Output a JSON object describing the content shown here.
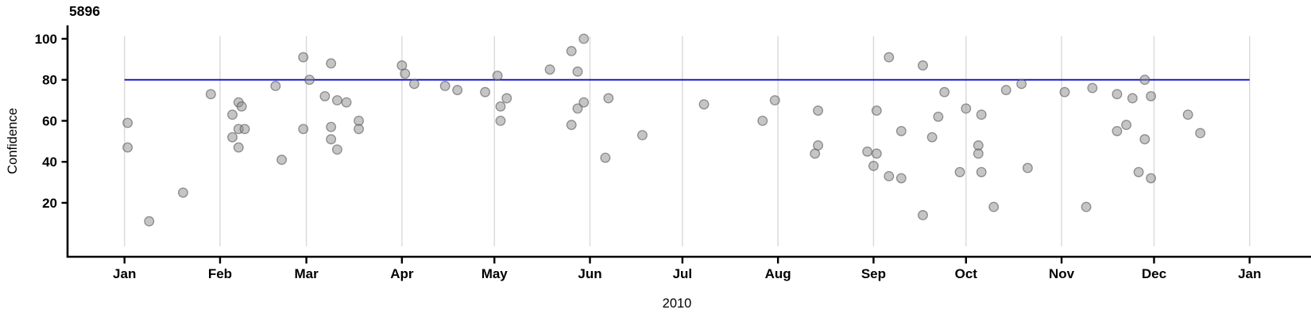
{
  "chart_data": {
    "type": "scatter",
    "title": "5896",
    "xlabel": "2010",
    "ylabel": "Confidence",
    "x_axis": {
      "tick_labels": [
        "Jan",
        "Feb",
        "Mar",
        "Apr",
        "May",
        "Jun",
        "Jul",
        "Aug",
        "Sep",
        "Oct",
        "Nov",
        "Dec",
        "Jan"
      ],
      "unit": "months of 2010 (Jan 2010 through Jan 2011)",
      "gridlines": "vertical light-gray line at the start of each month"
    },
    "y_axis": {
      "tick_values": [
        100,
        80,
        60,
        40,
        20
      ],
      "range_shown": [
        0,
        101
      ]
    },
    "reference_line": {
      "y": 80,
      "color": "#0a0ace",
      "extent": "Jan 1 to Dec 31"
    },
    "legend": "none",
    "colors": {
      "point_fill": "#c5c5c5",
      "point_stroke": "#999999",
      "gridline": "#d9d9d9",
      "axis": "#000000",
      "reference_line": "#0a0ace"
    },
    "x_unit": "day_of_year_2010",
    "points": [
      [
        2,
        59
      ],
      [
        2,
        47
      ],
      [
        9,
        11
      ],
      [
        20,
        25
      ],
      [
        29,
        73
      ],
      [
        36,
        63
      ],
      [
        36,
        52
      ],
      [
        38,
        69
      ],
      [
        38,
        47
      ],
      [
        38,
        56
      ],
      [
        40,
        56
      ],
      [
        39,
        67
      ],
      [
        50,
        77
      ],
      [
        52,
        41
      ],
      [
        59,
        91
      ],
      [
        59,
        56
      ],
      [
        61,
        80
      ],
      [
        66,
        72
      ],
      [
        68,
        88
      ],
      [
        68,
        57
      ],
      [
        68,
        51
      ],
      [
        70,
        70
      ],
      [
        70,
        46
      ],
      [
        73,
        69
      ],
      [
        77,
        60
      ],
      [
        77,
        56
      ],
      [
        91,
        87
      ],
      [
        92,
        83
      ],
      [
        95,
        78
      ],
      [
        105,
        77
      ],
      [
        109,
        75
      ],
      [
        118,
        74
      ],
      [
        122,
        82
      ],
      [
        123,
        67
      ],
      [
        123,
        60
      ],
      [
        125,
        71
      ],
      [
        139,
        85
      ],
      [
        146,
        94
      ],
      [
        146,
        58
      ],
      [
        148,
        84
      ],
      [
        148,
        66
      ],
      [
        150,
        100
      ],
      [
        150,
        69
      ],
      [
        157,
        42
      ],
      [
        158,
        71
      ],
      [
        169,
        53
      ],
      [
        189,
        68
      ],
      [
        208,
        60
      ],
      [
        212,
        70
      ],
      [
        225,
        44
      ],
      [
        226,
        65
      ],
      [
        226,
        48
      ],
      [
        242,
        45
      ],
      [
        244,
        38
      ],
      [
        245,
        65
      ],
      [
        245,
        44
      ],
      [
        249,
        91
      ],
      [
        249,
        33
      ],
      [
        253,
        55
      ],
      [
        253,
        32
      ],
      [
        260,
        87
      ],
      [
        260,
        14
      ],
      [
        263,
        52
      ],
      [
        265,
        62
      ],
      [
        267,
        74
      ],
      [
        272,
        35
      ],
      [
        274,
        66
      ],
      [
        278,
        48
      ],
      [
        278,
        44
      ],
      [
        279,
        63
      ],
      [
        279,
        35
      ],
      [
        283,
        18
      ],
      [
        287,
        75
      ],
      [
        292,
        78
      ],
      [
        294,
        37
      ],
      [
        306,
        74
      ],
      [
        313,
        18
      ],
      [
        315,
        76
      ],
      [
        323,
        73
      ],
      [
        323,
        55
      ],
      [
        326,
        58
      ],
      [
        328,
        71
      ],
      [
        330,
        35
      ],
      [
        332,
        80
      ],
      [
        332,
        51
      ],
      [
        334,
        72
      ],
      [
        334,
        32
      ],
      [
        346,
        63
      ],
      [
        350,
        54
      ]
    ]
  }
}
